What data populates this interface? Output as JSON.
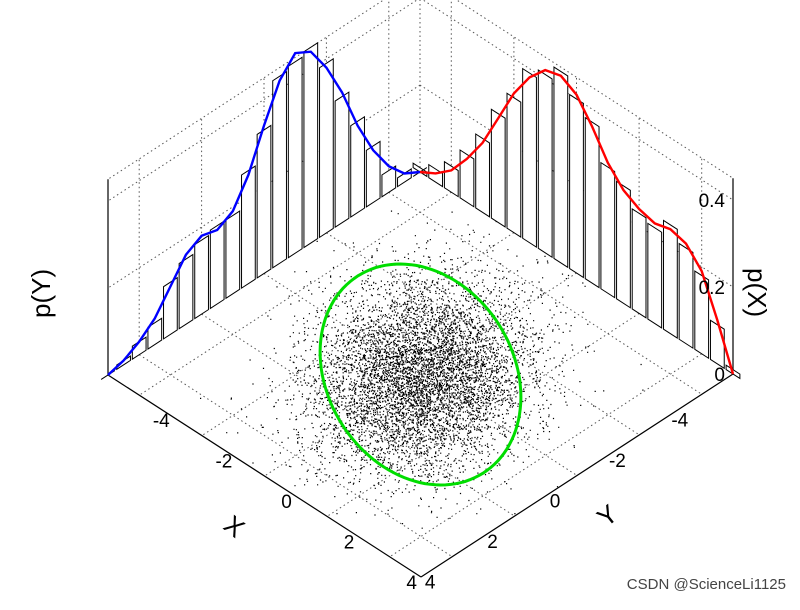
{
  "chart_data": {
    "type": "scatter",
    "subtype": "3d-scatter-with-marginal-histograms",
    "xlabel": "X",
    "ylabel": "Y",
    "zlabels": {
      "left": "p(Y)",
      "right": "p(X)"
    },
    "x_ticks": [
      "-4",
      "-2",
      "0",
      "2",
      "4"
    ],
    "y_ticks": [
      "-4",
      "-2",
      "0",
      "2",
      "4"
    ],
    "z_ticks": [
      "0",
      "0.2",
      "0.4"
    ],
    "xlim": [
      -5,
      5
    ],
    "ylim": [
      -5,
      5
    ],
    "zlim": [
      0,
      0.45
    ],
    "grid": true,
    "series": [
      {
        "role": "marginal-histogram-and-density",
        "axis": "Y",
        "line_color": "#ff0000",
        "y": [
          -5,
          -4.5,
          -4,
          -3.5,
          -3,
          -2.5,
          -2,
          -1.5,
          -1,
          -0.5,
          0,
          0.5,
          1,
          1.5,
          2,
          2.5,
          3,
          3.5,
          4,
          4.5,
          5
        ],
        "density": [
          0.0,
          0.02,
          0.05,
          0.1,
          0.16,
          0.24,
          0.32,
          0.38,
          0.42,
          0.43,
          0.41,
          0.36,
          0.3,
          0.26,
          0.24,
          0.23,
          0.24,
          0.23,
          0.19,
          0.1,
          0.0
        ],
        "histogram": [
          0.01,
          0.03,
          0.06,
          0.11,
          0.17,
          0.25,
          0.31,
          0.39,
          0.41,
          0.44,
          0.4,
          0.37,
          0.29,
          0.27,
          0.23,
          0.22,
          0.25,
          0.22,
          0.18,
          0.09,
          0.01
        ]
      },
      {
        "role": "marginal-histogram-and-density",
        "axis": "X",
        "line_color": "#0000ff",
        "x": [
          -5,
          -4.5,
          -4,
          -3.5,
          -3,
          -2.5,
          -2,
          -1.5,
          -1,
          -0.5,
          0,
          0.5,
          1,
          1.5,
          2,
          2.5,
          3,
          3.5,
          4,
          4.5,
          5
        ],
        "density": [
          0.0,
          0.02,
          0.06,
          0.12,
          0.2,
          0.3,
          0.38,
          0.44,
          0.46,
          0.42,
          0.34,
          0.25,
          0.19,
          0.17,
          0.18,
          0.16,
          0.11,
          0.06,
          0.03,
          0.01,
          0.0
        ],
        "histogram": [
          0.0,
          0.02,
          0.05,
          0.13,
          0.21,
          0.29,
          0.39,
          0.45,
          0.44,
          0.43,
          0.33,
          0.26,
          0.18,
          0.18,
          0.17,
          0.15,
          0.12,
          0.05,
          0.03,
          0.01,
          0.0
        ]
      },
      {
        "role": "scatter-points",
        "color": "#000000",
        "center": [
          0,
          0
        ],
        "spread": [
          1.6,
          1.4
        ],
        "correlation": 0.3
      },
      {
        "role": "confidence-ellipse",
        "color": "#00dd00",
        "center": [
          0,
          0
        ],
        "semi_axes": [
          3.9,
          2.2
        ],
        "angle_deg": 55
      }
    ]
  },
  "watermark": "CSDN @ScienceLi1125"
}
